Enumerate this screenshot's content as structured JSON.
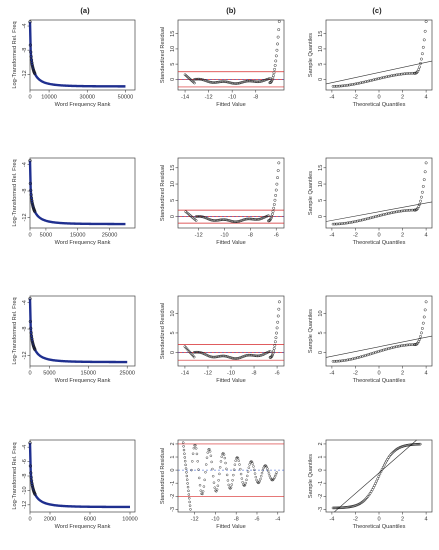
{
  "columns": [
    "(a)",
    "(b)",
    "(c)"
  ],
  "labels": {
    "a_x": "Word Frequency Rank",
    "a_y": "Log-Transformed Rel. Freq",
    "b_x": "Fitted Value",
    "b_y": "Standardized Residual",
    "c_x": "Theoretical Quantiles",
    "c_y": "Sample Quantiles"
  },
  "colors": {
    "points": "#1a1a1a",
    "fit_line": "#1f2f8f",
    "ref_lines": "#d62728",
    "dash_line": "#2850c8",
    "qq_line": "#333333"
  },
  "chart_data": [
    {
      "row": 1,
      "panels": [
        {
          "type": "line",
          "panel": "a",
          "xlim": [
            0,
            55000
          ],
          "ylim": [
            -14.6,
            -3
          ],
          "xticks": [
            0,
            10000,
            30000,
            50000
          ],
          "yticks": [
            -4,
            -8,
            -12
          ],
          "curve": {
            "start": -3.3,
            "end": -14,
            "k": 3,
            "xmax": 50000
          }
        },
        {
          "type": "scatter",
          "panel": "b",
          "xlim": [
            -14.6,
            -5.6
          ],
          "ylim": [
            -3.5,
            19.5
          ],
          "xticks": [
            -14,
            -12,
            -10,
            -8
          ],
          "yticks": [
            0,
            5,
            10,
            15
          ],
          "hlines": [
            2.5,
            0,
            -2.5
          ],
          "points_from": -14,
          "points_to": -6.8,
          "bottom_y": -1.1,
          "spike_top": 19
        },
        {
          "type": "scatter",
          "panel": "c",
          "xlim": [
            -4.5,
            4.5
          ],
          "ylim": [
            -3.5,
            19.5
          ],
          "xticks": [
            -4,
            -2,
            0,
            2,
            4
          ],
          "yticks": [
            0,
            5,
            10,
            15
          ],
          "qq_line": [
            [
              -4.5,
              -1.5
            ],
            [
              4.5,
              6
            ]
          ],
          "tail_top": 19
        }
      ]
    },
    {
      "row": 2,
      "panels": [
        {
          "type": "line",
          "panel": "a",
          "xlim": [
            0,
            33000
          ],
          "ylim": [
            -13.6,
            -3
          ],
          "xticks": [
            0,
            5000,
            15000,
            25000
          ],
          "yticks": [
            -4,
            -8,
            -12
          ],
          "curve": {
            "start": -3.4,
            "end": -13,
            "k": 3,
            "xmax": 30000
          }
        },
        {
          "type": "scatter",
          "panel": "b",
          "xlim": [
            -13.6,
            -5.4
          ],
          "ylim": [
            -3.5,
            18
          ],
          "xticks": [
            -12,
            -10,
            -8,
            -6
          ],
          "yticks": [
            0,
            5,
            10,
            15
          ],
          "hlines": [
            2,
            0,
            -2
          ],
          "points_from": -13,
          "points_to": -6.6,
          "bottom_y": -1.3,
          "spike_top": 16.5
        },
        {
          "type": "scatter",
          "panel": "c",
          "xlim": [
            -4.5,
            4.5
          ],
          "ylim": [
            -3.5,
            18
          ],
          "xticks": [
            -4,
            -2,
            0,
            2,
            4
          ],
          "yticks": [
            0,
            5,
            10,
            15
          ],
          "qq_line": [
            [
              -4.5,
              -1.5
            ],
            [
              4.5,
              4.5
            ]
          ],
          "tail_top": 16.5
        }
      ]
    },
    {
      "row": 3,
      "panels": [
        {
          "type": "line",
          "panel": "a",
          "xlim": [
            0,
            27000
          ],
          "ylim": [
            -13.6,
            -3
          ],
          "xticks": [
            0,
            5000,
            15000,
            25000
          ],
          "yticks": [
            -4,
            -8,
            -12
          ],
          "curve": {
            "start": -3.4,
            "end": -13,
            "k": 3,
            "xmax": 25000
          }
        },
        {
          "type": "scatter",
          "panel": "b",
          "xlim": [
            -14.6,
            -5.4
          ],
          "ylim": [
            -3.5,
            14.5
          ],
          "xticks": [
            -14,
            -12,
            -10,
            -8,
            -6
          ],
          "yticks": [
            0,
            5,
            10
          ],
          "hlines": [
            2,
            0,
            -2
          ],
          "points_from": -14,
          "points_to": -6.6,
          "bottom_y": -1.3,
          "spike_top": 13
        },
        {
          "type": "scatter",
          "panel": "c",
          "xlim": [
            -4.5,
            4.5
          ],
          "ylim": [
            -3.5,
            14.5
          ],
          "xticks": [
            -4,
            -2,
            0,
            2,
            4
          ],
          "yticks": [
            0,
            5,
            10
          ],
          "qq_line": [
            [
              -4.5,
              -1.3
            ],
            [
              4.5,
              4.2
            ]
          ],
          "tail_top": 13
        }
      ]
    },
    {
      "row": 4,
      "panels": [
        {
          "type": "line",
          "panel": "a",
          "xlim": [
            0,
            10500
          ],
          "ylim": [
            -13,
            -3
          ],
          "xticks": [
            0,
            2000,
            6000,
            10000
          ],
          "yticks": [
            -4,
            -6,
            -8,
            -10,
            -12
          ],
          "curve": {
            "start": -3.4,
            "end": -12.3,
            "k": 3,
            "xmax": 10000
          }
        },
        {
          "type": "scatter",
          "panel": "b",
          "xlim": [
            -13.6,
            -3.4
          ],
          "ylim": [
            -3.2,
            2.3
          ],
          "xticks": [
            -12,
            -10,
            -8,
            -6,
            -4
          ],
          "yticks": [
            2,
            1,
            0,
            -1,
            -2,
            -3
          ],
          "hlines": [
            2,
            -2
          ],
          "points_from": -13,
          "points_to": -4
        },
        {
          "type": "scatter",
          "panel": "c",
          "xlim": [
            -4.5,
            4.5
          ],
          "ylim": [
            -3.2,
            2.3
          ],
          "xticks": [
            -4,
            -2,
            0,
            2,
            4
          ],
          "yticks": [
            2,
            1,
            0,
            -1,
            -2,
            -3
          ],
          "qq_line": [
            [
              -3.8,
              -3.2
            ],
            [
              3.2,
              2.3
            ]
          ]
        }
      ]
    }
  ]
}
